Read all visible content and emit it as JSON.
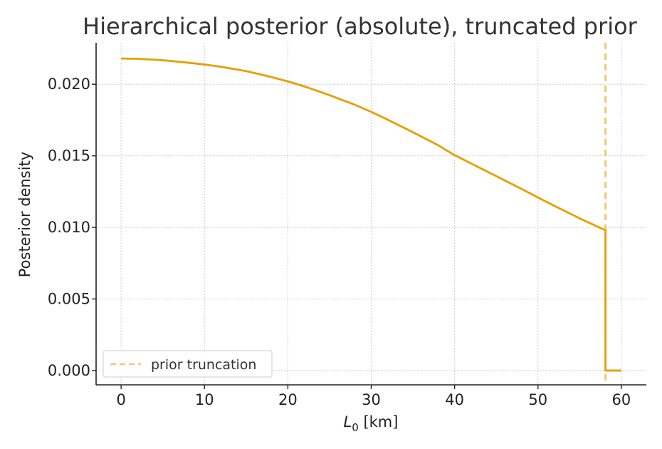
{
  "chart_data": {
    "type": "line",
    "title": "Hierarchical posterior (absolute), truncated prior",
    "xlabel_main": "L",
    "xlabel_sub": "0",
    "xlabel_unit": "[km]",
    "ylabel": "Posterior density",
    "xlim": [
      -3,
      63
    ],
    "ylim": [
      -0.001,
      0.0229
    ],
    "x_ticks": [
      0,
      10,
      20,
      30,
      40,
      50,
      60
    ],
    "x_tick_labels": [
      "0",
      "10",
      "20",
      "30",
      "40",
      "50",
      "60"
    ],
    "y_ticks": [
      0.0,
      0.005,
      0.01,
      0.015,
      0.02
    ],
    "y_tick_labels": [
      "0.000",
      "0.005",
      "0.010",
      "0.015",
      "0.020"
    ],
    "grid": true,
    "legend_position": "lower-left",
    "series": [
      {
        "color": "#E69F00",
        "x": [
          0,
          2,
          5,
          8,
          10,
          12,
          15,
          18,
          20,
          22,
          25,
          28,
          30,
          32,
          35,
          38,
          40,
          42,
          45,
          48,
          50,
          52,
          55,
          58.1,
          58.1,
          60
        ],
        "y": [
          0.0218,
          0.02178,
          0.02168,
          0.02151,
          0.02138,
          0.02122,
          0.02092,
          0.02051,
          0.0202,
          0.01985,
          0.01924,
          0.01858,
          0.01807,
          0.01752,
          0.01665,
          0.01575,
          0.01505,
          0.01446,
          0.01358,
          0.0127,
          0.01209,
          0.0115,
          0.01063,
          0.0098,
          0.0,
          0.0
        ]
      }
    ],
    "reference_lines": [
      {
        "name": "prior truncation",
        "orientation": "vertical",
        "x": 58.1,
        "style": "dashed",
        "color": "#F3C66E"
      }
    ],
    "legend": {
      "entries": [
        "prior truncation"
      ]
    },
    "colors": {
      "axis": "#222222",
      "grid": "#cccccc",
      "curve": "#E69F00",
      "truncation": "#F3C66E"
    }
  }
}
